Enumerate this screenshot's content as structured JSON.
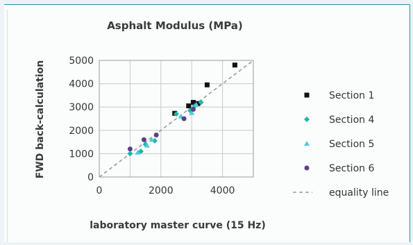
{
  "chart_data": {
    "type": "scatter",
    "title": "Asphalt Modulus  (MPa)",
    "xlabel": "laboratory master curve (15 Hz)",
    "ylabel": "FWD back-calculation",
    "xlim": [
      0,
      5000
    ],
    "ylim": [
      0,
      5000
    ],
    "x_ticks": [
      "0",
      "2000",
      "4000"
    ],
    "y_ticks": [
      "0",
      "1000",
      "2000",
      "3000",
      "4000",
      "5000"
    ],
    "grid": "horizontal and vertical",
    "legend_position": "right",
    "series": [
      {
        "name": "Section 1",
        "marker": "square",
        "color": "#111111",
        "points": [
          [
            2450,
            2730
          ],
          [
            2900,
            3050
          ],
          [
            3050,
            3200
          ],
          [
            3200,
            3150
          ],
          [
            3500,
            3950
          ],
          [
            4400,
            4800
          ]
        ]
      },
      {
        "name": "Section 4",
        "marker": "diamond",
        "color": "#1fb5a6",
        "points": [
          [
            1000,
            1000
          ],
          [
            1350,
            1100
          ],
          [
            1500,
            1400
          ],
          [
            1800,
            1550
          ],
          [
            2500,
            2700
          ],
          [
            2950,
            2850
          ],
          [
            3100,
            3050
          ],
          [
            3300,
            3200
          ]
        ]
      },
      {
        "name": "Section 5",
        "marker": "triangle",
        "color": "#4fc8e0",
        "points": [
          [
            1250,
            1050
          ],
          [
            1550,
            1350
          ],
          [
            1700,
            1600
          ],
          [
            2650,
            2600
          ],
          [
            3000,
            2750
          ],
          [
            3150,
            3100
          ]
        ]
      },
      {
        "name": "Section 6",
        "marker": "circle",
        "color": "#5b3f8c",
        "points": [
          [
            1000,
            1200
          ],
          [
            1450,
            1600
          ],
          [
            1850,
            1800
          ],
          [
            2750,
            2500
          ],
          [
            3050,
            2900
          ]
        ]
      },
      {
        "name": "equality line",
        "marker": "dashed-line",
        "color": "#9a9a9a",
        "points": [
          [
            0,
            0
          ],
          [
            5000,
            5000
          ]
        ]
      }
    ]
  }
}
